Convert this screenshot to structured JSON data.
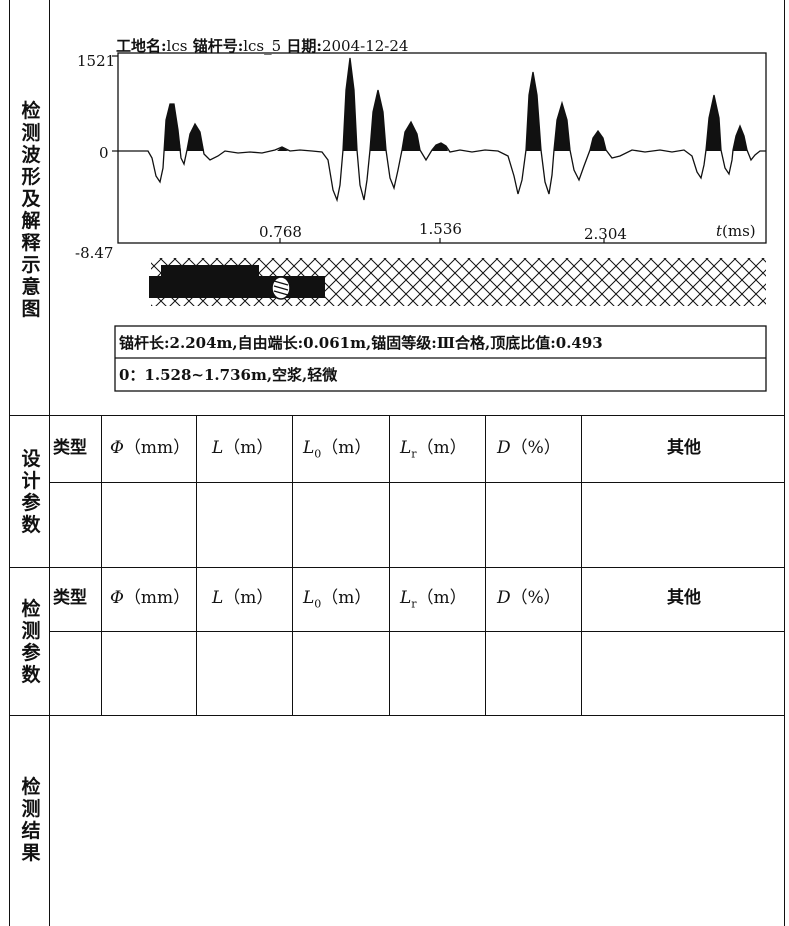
{
  "sections": {
    "waveform_label": "检测波形及解释示意图",
    "design_label": "设计参数",
    "measured_label": "检测参数",
    "result_label": "检测结果"
  },
  "header": {
    "site_label": "工地名:",
    "site_value": "lcs",
    "anchor_label": "锚杆号:",
    "anchor_value": "lcs_5",
    "date_label": "日期:",
    "date_value": "2004-12-24"
  },
  "chart_data": {
    "type": "line",
    "ymax_label": "1521",
    "yzero_label": "0",
    "ymin_label": "-8.47",
    "ylim": [
      -8.47,
      1521
    ],
    "x_ticks": [
      "0.768",
      "1.536",
      "2.304"
    ],
    "x_ticks_values": [
      0.768,
      1.536,
      2.304
    ],
    "x_unit_symbol": "t",
    "x_unit": "(ms)"
  },
  "info": {
    "line1": "锚杆长:2.204m,自由端长:0.061m,锚固等级:Ⅲ合格,顶底比值:0.493",
    "line2": "0：1.528~1.736m,空浆,轻微"
  },
  "params_table": {
    "col_type": "类型",
    "col_phi_sym": "Φ",
    "col_phi_unit": "（mm）",
    "col_L_sym": "L",
    "col_L_unit": "（m）",
    "col_L0_sym": "L",
    "col_L0_sub": "0",
    "col_L0_unit": "（m）",
    "col_Lr_sym": "L",
    "col_Lr_sub": "r",
    "col_Lr_unit": "（m）",
    "col_D_sym": "D",
    "col_D_unit": "（%）",
    "col_other": "其他"
  }
}
